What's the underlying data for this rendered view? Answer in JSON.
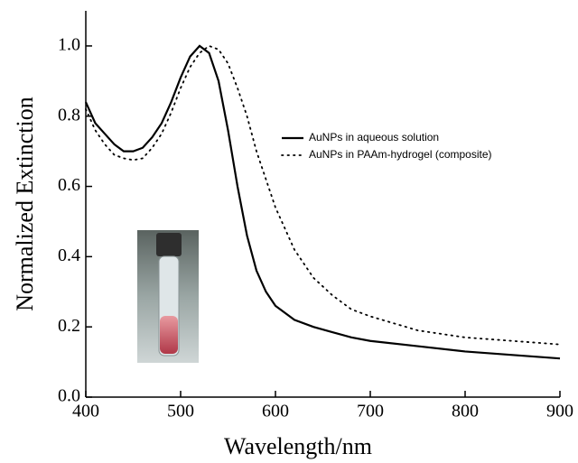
{
  "chart_data": {
    "type": "line",
    "x_label": "Wavelength/nm",
    "y_label": "Normalized Extinction",
    "x": [
      400,
      410,
      420,
      430,
      440,
      450,
      460,
      470,
      480,
      490,
      500,
      510,
      520,
      530,
      540,
      550,
      560,
      570,
      580,
      590,
      600,
      620,
      640,
      660,
      680,
      700,
      750,
      800,
      850,
      900
    ],
    "series": [
      {
        "name": "AuNPs in aqueous solution",
        "color": "#000000",
        "style": "solid",
        "values": [
          0.84,
          0.78,
          0.75,
          0.72,
          0.7,
          0.7,
          0.71,
          0.74,
          0.78,
          0.84,
          0.91,
          0.97,
          1.0,
          0.98,
          0.9,
          0.76,
          0.6,
          0.46,
          0.36,
          0.3,
          0.26,
          0.22,
          0.2,
          0.185,
          0.17,
          0.16,
          0.145,
          0.13,
          0.12,
          0.11
        ]
      },
      {
        "name": "AuNPs in PAAm-hydrogel (composite)",
        "color": "#000000",
        "style": "dotted",
        "values": [
          0.82,
          0.76,
          0.72,
          0.69,
          0.68,
          0.675,
          0.68,
          0.71,
          0.75,
          0.81,
          0.88,
          0.94,
          0.98,
          1.0,
          0.99,
          0.95,
          0.88,
          0.8,
          0.7,
          0.62,
          0.54,
          0.42,
          0.34,
          0.29,
          0.25,
          0.23,
          0.19,
          0.17,
          0.16,
          0.15
        ]
      }
    ],
    "xlim": [
      400,
      900
    ],
    "xticks": [
      400,
      500,
      600,
      700,
      800,
      900
    ],
    "ylim": [
      0,
      1.1
    ],
    "yticks": [
      {
        "value": 0,
        "label": "0.0"
      },
      0.2,
      0.4,
      0.6,
      0.8,
      {
        "value": 1,
        "label": "1.0"
      }
    ],
    "legend": "center right",
    "grid": false
  }
}
